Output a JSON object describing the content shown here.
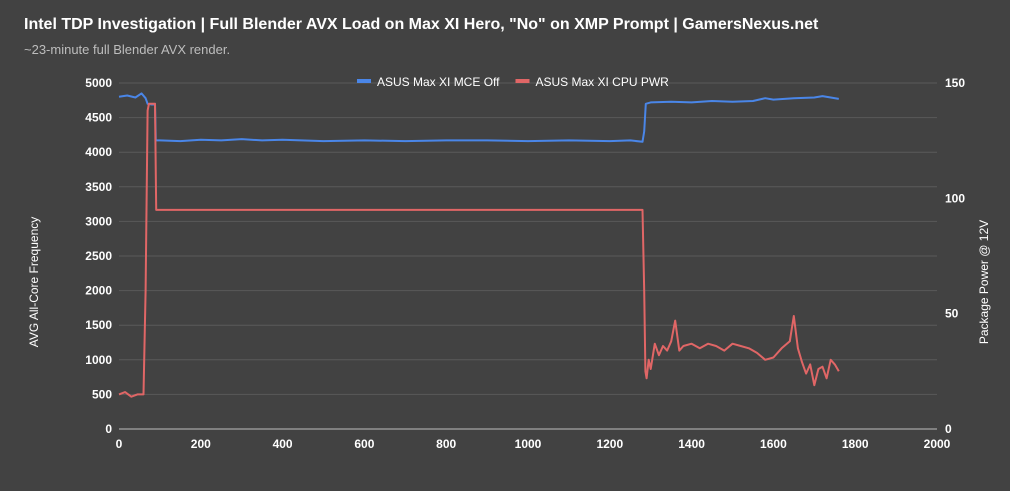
{
  "title": "Intel TDP Investigation | Full Blender AVX Load on Max XI Hero, \"No\" on XMP Prompt | GamersNexus.net",
  "subtitle": "~23-minute full Blender AVX render.",
  "chart_data": {
    "type": "line",
    "xlabel": "",
    "ylabel": "AVG All-Core Frequency",
    "y2label": "Package Power @ 12V",
    "xlim": [
      0,
      2000
    ],
    "ylim": [
      0,
      5000
    ],
    "y2lim": [
      0,
      150
    ],
    "xticks": [
      0,
      200,
      400,
      600,
      800,
      1000,
      1200,
      1400,
      1600,
      1800,
      2000
    ],
    "yticks": [
      0,
      500,
      1000,
      1500,
      2000,
      2500,
      3000,
      3500,
      4000,
      4500,
      5000
    ],
    "y2ticks": [
      0,
      50,
      100,
      150
    ],
    "legend_position": "top",
    "grid": true,
    "series": [
      {
        "name": "ASUS Max XI MCE Off",
        "axis": "left",
        "color": "#4a86e8",
        "x": [
          0,
          20,
          40,
          55,
          65,
          70,
          80,
          88,
          90,
          100,
          150,
          200,
          250,
          300,
          350,
          400,
          500,
          600,
          700,
          800,
          900,
          1000,
          1100,
          1200,
          1250,
          1280,
          1284,
          1288,
          1300,
          1350,
          1400,
          1450,
          1500,
          1550,
          1580,
          1600,
          1650,
          1700,
          1720,
          1740,
          1760
        ],
        "y": [
          4800,
          4820,
          4790,
          4850,
          4780,
          4700,
          4690,
          4700,
          4170,
          4170,
          4160,
          4180,
          4170,
          4190,
          4170,
          4180,
          4160,
          4170,
          4160,
          4170,
          4170,
          4160,
          4170,
          4160,
          4170,
          4150,
          4300,
          4700,
          4720,
          4730,
          4720,
          4740,
          4730,
          4740,
          4780,
          4760,
          4780,
          4790,
          4810,
          4790,
          4770
        ]
      },
      {
        "name": "ASUS Max XI CPU PWR",
        "axis": "right",
        "color": "#e06666",
        "x": [
          0,
          15,
          30,
          45,
          60,
          65,
          70,
          73,
          78,
          85,
          88,
          91,
          95,
          150,
          200,
          300,
          400,
          600,
          800,
          1000,
          1200,
          1280,
          1284,
          1287,
          1290,
          1295,
          1300,
          1310,
          1320,
          1330,
          1340,
          1350,
          1360,
          1370,
          1380,
          1400,
          1420,
          1440,
          1460,
          1480,
          1500,
          1520,
          1540,
          1560,
          1580,
          1600,
          1620,
          1640,
          1650,
          1660,
          1670,
          1680,
          1690,
          1700,
          1710,
          1720,
          1730,
          1740,
          1750,
          1760
        ],
        "y": [
          15,
          16,
          14,
          15,
          15,
          60,
          138,
          141,
          141,
          141,
          141,
          95,
          95,
          95,
          95,
          95,
          95,
          95,
          95,
          95,
          95,
          95,
          60,
          25,
          22,
          30,
          26,
          37,
          32,
          36,
          34,
          38,
          47,
          34,
          36,
          37,
          35,
          37,
          36,
          34,
          37,
          36,
          35,
          33,
          30,
          31,
          35,
          38,
          49,
          35,
          29,
          24,
          28,
          19,
          26,
          27,
          22,
          30,
          28,
          25
        ]
      }
    ]
  }
}
